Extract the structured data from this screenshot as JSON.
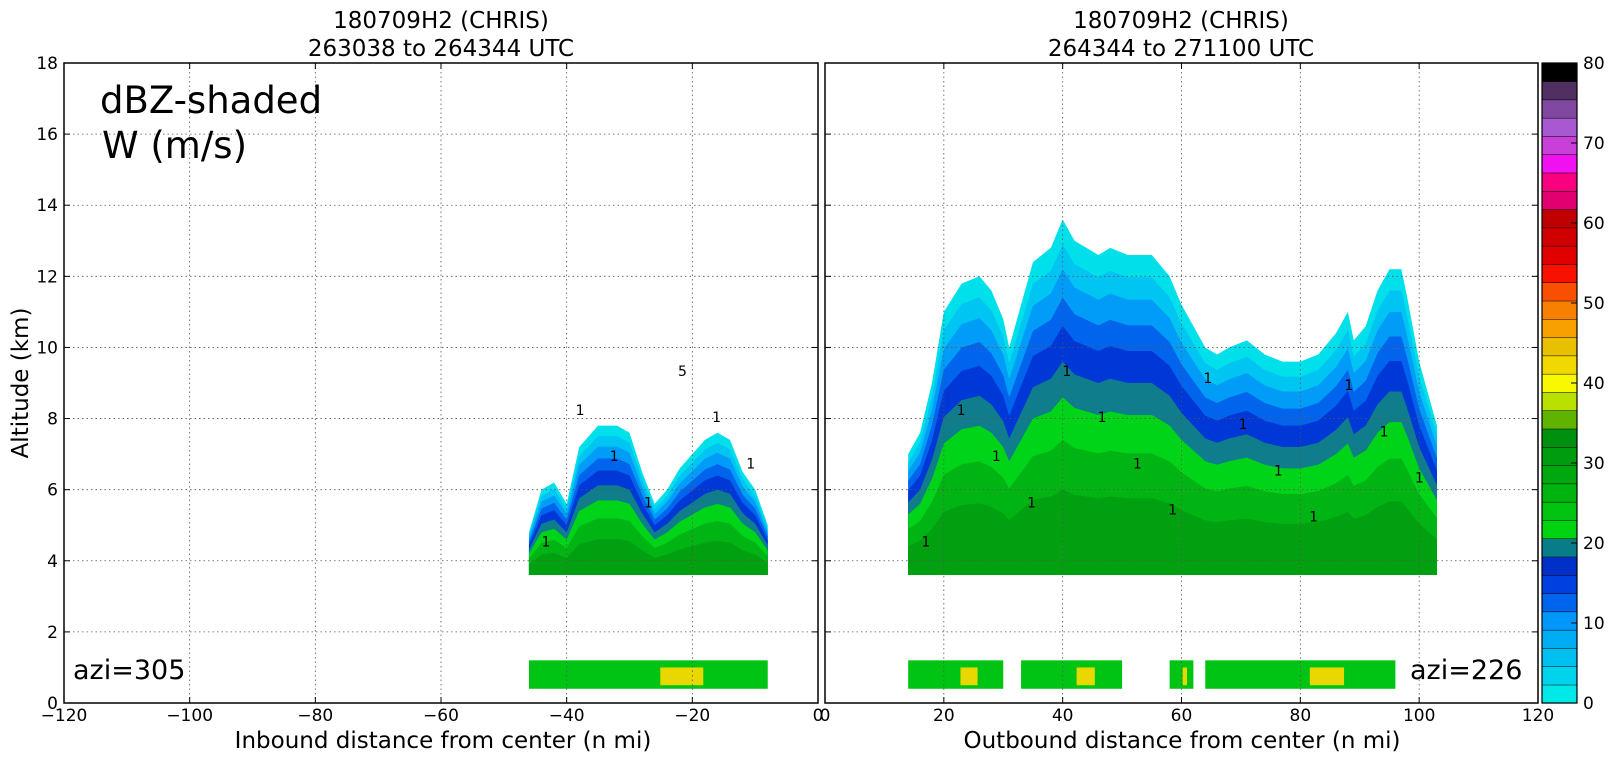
{
  "chart_data": [
    {
      "type": "contour",
      "title": "180709H2 (CHRIS)",
      "subtitle": "263038 to 264344 UTC",
      "xlabel": "Inbound distance from center (n mi)",
      "ylabel": "Altitude (km)",
      "xlim": [
        -120,
        0
      ],
      "ylim": [
        0,
        18
      ],
      "x_ticks": [
        "−120",
        "−100",
        "−80",
        "−60",
        "−40",
        "−20",
        "0"
      ],
      "y_ticks": [
        "0",
        "2",
        "4",
        "6",
        "8",
        "10",
        "12",
        "14",
        "16",
        "18"
      ],
      "grid": true,
      "legend_text": [
        "dBZ-shaded",
        "W (m/s)"
      ],
      "annotation": "azi=305",
      "echo_upper": {
        "x_range": [
          -46,
          -8
        ],
        "base_km": 3.6,
        "top_profile": [
          [
            -46,
            4.8
          ],
          [
            -44,
            6.0
          ],
          [
            -42,
            6.2
          ],
          [
            -40,
            5.6
          ],
          [
            -38,
            7.2
          ],
          [
            -35,
            7.8
          ],
          [
            -32,
            7.8
          ],
          [
            -30,
            7.6
          ],
          [
            -28,
            6.5
          ],
          [
            -26,
            5.6
          ],
          [
            -24,
            6.0
          ],
          [
            -22,
            6.6
          ],
          [
            -20,
            7.0
          ],
          [
            -18,
            7.4
          ],
          [
            -16,
            7.6
          ],
          [
            -14,
            7.4
          ],
          [
            -12,
            6.5
          ],
          [
            -10,
            6.0
          ],
          [
            -8,
            5.0
          ]
        ]
      },
      "echo_lower": {
        "x_range": [
          -46,
          -8
        ],
        "base_km": 0.4,
        "top_km": 1.2
      },
      "contour_labels": [
        "1",
        "1",
        "1",
        "1",
        "5",
        "1",
        "1"
      ]
    },
    {
      "type": "contour",
      "title": "180709H2 (CHRIS)",
      "subtitle": "264344 to 271100 UTC",
      "xlabel": "Outbound distance from center (n mi)",
      "xlim": [
        0,
        120
      ],
      "ylim": [
        0,
        18
      ],
      "x_ticks": [
        "0",
        "20",
        "40",
        "60",
        "80",
        "100",
        "120"
      ],
      "grid": true,
      "annotation": "azi=226",
      "echo_upper": {
        "x_range": [
          14,
          103
        ],
        "base_km": 3.6,
        "top_profile": [
          [
            14,
            7.0
          ],
          [
            16,
            7.6
          ],
          [
            18,
            9.0
          ],
          [
            20,
            11.0
          ],
          [
            23,
            11.8
          ],
          [
            26,
            12.0
          ],
          [
            28,
            11.6
          ],
          [
            30,
            10.8
          ],
          [
            31,
            10.0
          ],
          [
            33,
            11.2
          ],
          [
            35,
            12.4
          ],
          [
            38,
            12.8
          ],
          [
            39,
            13.2
          ],
          [
            40,
            13.6
          ],
          [
            42,
            13.0
          ],
          [
            44,
            12.8
          ],
          [
            46,
            12.6
          ],
          [
            48,
            12.8
          ],
          [
            51,
            12.6
          ],
          [
            55,
            12.6
          ],
          [
            58,
            12.0
          ],
          [
            60,
            11.2
          ],
          [
            62,
            10.6
          ],
          [
            64,
            10.0
          ],
          [
            66,
            9.8
          ],
          [
            68,
            10.0
          ],
          [
            71,
            10.2
          ],
          [
            74,
            9.8
          ],
          [
            77,
            9.6
          ],
          [
            80,
            9.6
          ],
          [
            83,
            9.8
          ],
          [
            86,
            10.4
          ],
          [
            88,
            11.0
          ],
          [
            89,
            10.2
          ],
          [
            91,
            10.6
          ],
          [
            93,
            11.6
          ],
          [
            95,
            12.2
          ],
          [
            97,
            12.2
          ],
          [
            98,
            11.4
          ],
          [
            100,
            9.6
          ],
          [
            102,
            8.4
          ],
          [
            103,
            7.8
          ]
        ]
      },
      "echo_lower_segments": [
        [
          14,
          30
        ],
        [
          33,
          50
        ],
        [
          58,
          62
        ],
        [
          64,
          96
        ]
      ],
      "contour_labels": [
        "1",
        "1",
        "1",
        "1",
        "1",
        "1",
        "1",
        "1",
        "1",
        "1",
        "1",
        "1",
        "1",
        "1",
        "1"
      ]
    }
  ],
  "colorbar": {
    "ticks": [
      "0",
      "10",
      "20",
      "30",
      "40",
      "50",
      "60",
      "70",
      "80"
    ],
    "colors": [
      "#00e8e8",
      "#00d4ec",
      "#00c0f0",
      "#00acf4",
      "#0098f8",
      "#0064ec",
      "#0040e0",
      "#0030c8",
      "#087c88",
      "#00d410",
      "#00c410",
      "#00b410",
      "#00a810",
      "#009c10",
      "#009010",
      "#60b400",
      "#b8e000",
      "#f8f800",
      "#f0d800",
      "#e8c000",
      "#f8a000",
      "#f88000",
      "#f85000",
      "#f81000",
      "#e00000",
      "#d00000",
      "#c00000",
      "#e00070",
      "#f80080",
      "#f010f0",
      "#c840d8",
      "#a858d0",
      "#8048a0",
      "#503060",
      "#000000"
    ]
  }
}
